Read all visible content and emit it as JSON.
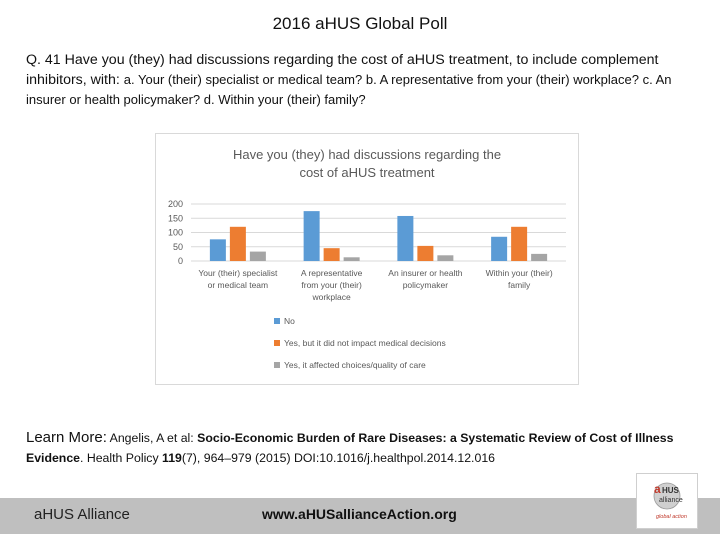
{
  "slide": {
    "title": "2016 aHUS Global Poll",
    "question": "Q. 41   Have you (they) had discussions regarding the cost of aHUS treatment, to include complement inhibitors, with:",
    "question_options": "a. Your (their) specialist or medical team?  b. A representative from your (their) workplace?  c. An insurer or health policymaker?  d. Within your (their) family?"
  },
  "learn_more": {
    "label": "Learn More:",
    "authors": "Angelis, A et al:",
    "article_title": "Socio-Economic Burden of Rare Diseases: a Systematic Review of Cost of Illness Evidence",
    "journal": ". Health Policy",
    "volume": "119",
    "issue_pages": "(7), 964–979 (2015)  DOI:10.1016/j.healthpol.2014.12.016"
  },
  "footer": {
    "org": "aHUS Alliance",
    "url": "www.aHUSallianceAction.org"
  },
  "logo": {
    "letter": "a",
    "word": "HUS",
    "tagline": "alliance",
    "subline": "global action"
  },
  "chart_data": {
    "type": "bar",
    "title_lines": [
      "Have you (they) had discussions  regarding the",
      "cost of aHUS treatment"
    ],
    "categories": [
      [
        "Your (their) specialist",
        "or medical team"
      ],
      [
        "A representative",
        "from your (their)",
        "workplace"
      ],
      [
        "An insurer or health",
        "policymaker"
      ],
      [
        "Within your (their)",
        "family"
      ]
    ],
    "series": [
      {
        "name": "No",
        "color": "#5b9bd5",
        "values": [
          76,
          175,
          158,
          85
        ]
      },
      {
        "name": "Yes,  but it did not impact medical decisions",
        "color": "#ed7d31",
        "values": [
          120,
          45,
          53,
          120
        ]
      },
      {
        "name": "Yes,  it affected choices/quality of care",
        "color": "#a5a5a5",
        "values": [
          33,
          13,
          20,
          25
        ]
      }
    ],
    "ylim": [
      0,
      200
    ],
    "yticks": [
      0,
      50,
      100,
      150,
      200
    ],
    "grid": true,
    "legend_position": "bottom"
  }
}
